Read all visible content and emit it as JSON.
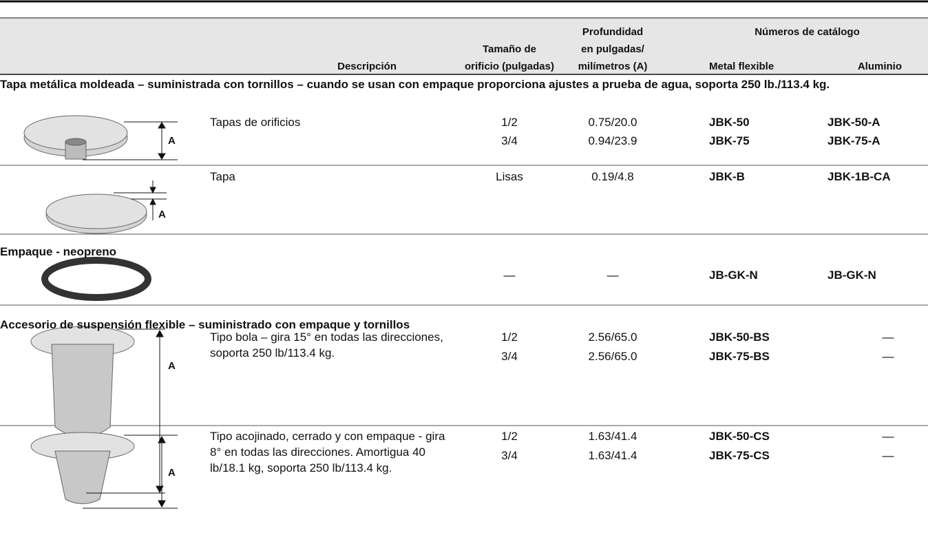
{
  "header": {
    "description": "Descripción",
    "hole": [
      "Tamaño de",
      "orificio (pulgadas)"
    ],
    "depth": [
      "Profundidad",
      "en pulgadas/",
      "milímetros (A)"
    ],
    "catalog": "Números de catálogo",
    "metal": "Metal flexible",
    "aluminum": "Aluminio"
  },
  "sections": [
    {
      "title": "Tapa metálica moldeada – suministrada con tornillos – cuando se usan con empaque proporciona ajustes a prueba de agua, soporta 250 lb./113.4 kg.",
      "items": [
        {
          "image_label": "A",
          "description": "Tapas de orificios",
          "rows": [
            [
              "1/2",
              "0.75/20.0",
              "JBK-50",
              "JBK-50-A"
            ],
            [
              "3/4",
              "0.94/23.9",
              "JBK-75",
              "JBK-75-A"
            ]
          ]
        },
        {
          "image_label": "A",
          "description": "Tapa",
          "rows": [
            [
              "Lisas",
              "0.19/4.8",
              "JBK-B",
              "JBK-1B-CA"
            ]
          ]
        }
      ]
    },
    {
      "title": "Empaque - neopreno",
      "items": [
        {
          "rows": [
            [
              "—",
              "—",
              "JB-GK-N",
              "JB-GK-N"
            ]
          ]
        }
      ]
    },
    {
      "title": "Accesorio de suspensión flexible – suministrado con empaque y tornillos",
      "items": [
        {
          "image_label": "A",
          "description": "Tipo bola – gira 15° en todas las direcciones, soporta 250 lb/113.4 kg.",
          "rows": [
            [
              "1/2",
              "2.56/65.0",
              "JBK-50-BS",
              "—"
            ],
            [
              "3/4",
              "2.56/65.0",
              "JBK-75-BS",
              "—"
            ]
          ]
        },
        {
          "image_label": "A",
          "description": "Tipo acojinado, cerrado y con empaque - gira 8° en todas las direcciones. Amortigua 40 lb/18.1 kg, soporta 250 lb/113.4 kg.",
          "rows": [
            [
              "1/2",
              "1.63/41.4",
              "JBK-50-CS",
              "—"
            ],
            [
              "3/4",
              "1.63/41.4",
              "JBK-75-CS",
              "—"
            ]
          ]
        }
      ]
    }
  ]
}
